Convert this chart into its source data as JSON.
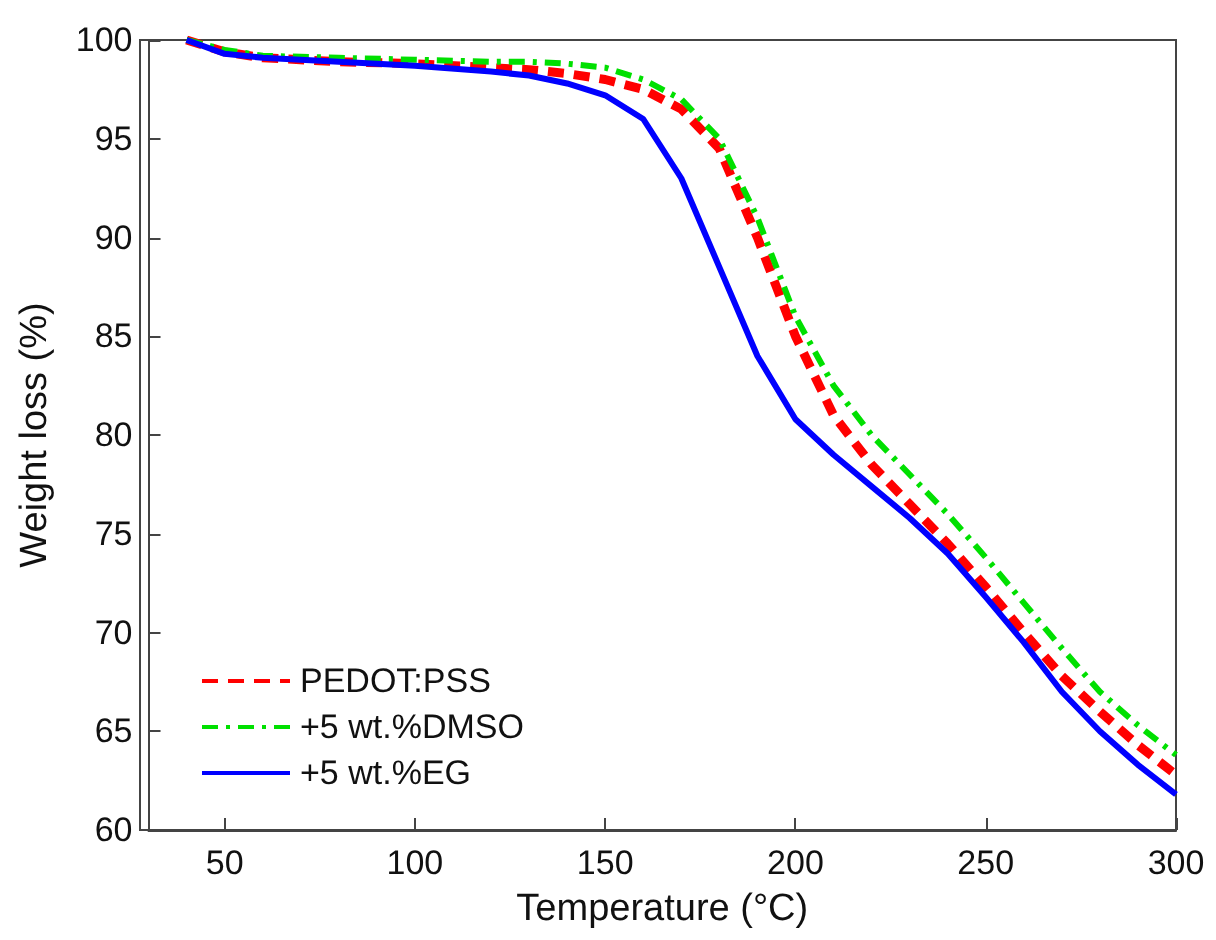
{
  "chart_data": {
    "type": "line",
    "xlabel": "Temperature (°C)",
    "ylabel": "Weight loss (%)",
    "xlim": [
      30,
      300
    ],
    "xticks": [
      50,
      100,
      150,
      200,
      250,
      300
    ],
    "ylim": [
      60,
      100
    ],
    "yticks": [
      60,
      65,
      70,
      75,
      80,
      85,
      90,
      95,
      100
    ],
    "grid": false,
    "legend": "bottom left",
    "marker": "none",
    "series": [
      {
        "name": "PEDOT:PSS",
        "color": "#ff0000",
        "line_style": "dashed",
        "x": [
          40,
          50,
          60,
          80,
          100,
          120,
          130,
          140,
          150,
          160,
          170,
          180,
          190,
          200,
          210,
          220,
          230,
          240,
          250,
          260,
          270,
          280,
          290,
          300
        ],
        "values": [
          100,
          99.4,
          99.1,
          98.9,
          98.8,
          98.6,
          98.5,
          98.3,
          98,
          97.5,
          96.5,
          94.5,
          90,
          85,
          81,
          78.5,
          76.5,
          74.5,
          72.3,
          70,
          67.8,
          66,
          64.3,
          62.8
        ]
      },
      {
        "name": "+5 wt.%DMSO",
        "color": "#00e000",
        "line_style": "dashdot",
        "x": [
          40,
          50,
          60,
          80,
          100,
          120,
          130,
          140,
          150,
          160,
          170,
          180,
          190,
          200,
          210,
          220,
          230,
          240,
          250,
          260,
          270,
          280,
          290,
          300
        ],
        "values": [
          100,
          99.5,
          99.2,
          99.1,
          99,
          98.9,
          98.9,
          98.8,
          98.6,
          98,
          97,
          95,
          91,
          86,
          82.5,
          80,
          78,
          76,
          73.8,
          71.5,
          69.2,
          67,
          65.3,
          63.8
        ]
      },
      {
        "name": "+5 wt.%EG",
        "color": "#0000ff",
        "line_style": "solid",
        "x": [
          40,
          50,
          60,
          80,
          100,
          120,
          130,
          140,
          150,
          160,
          170,
          180,
          190,
          200,
          210,
          220,
          230,
          240,
          250,
          260,
          270,
          280,
          290,
          300
        ],
        "values": [
          100,
          99.3,
          99.1,
          98.9,
          98.7,
          98.4,
          98.2,
          97.8,
          97.2,
          96,
          93,
          88.5,
          84,
          80.8,
          79,
          77.4,
          75.8,
          74,
          71.8,
          69.5,
          67,
          65,
          63.3,
          61.8
        ]
      }
    ]
  }
}
